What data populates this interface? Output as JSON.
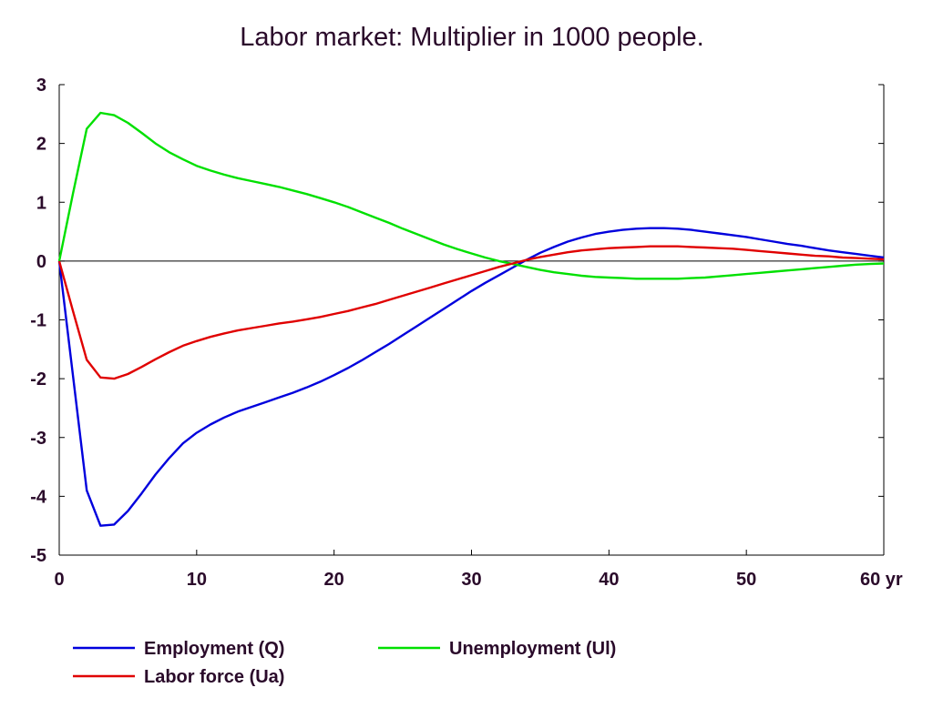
{
  "colors": {
    "text": "#2a0a2a",
    "axis": "#000000",
    "employment": "#0000dd",
    "labor_force": "#e00000",
    "unemployment": "#00e000"
  },
  "chart_data": {
    "type": "line",
    "title": "Labor market: Multiplier in 1000 people.",
    "xlabel": "",
    "ylabel": "",
    "xlim": [
      0,
      60
    ],
    "ylim": [
      -5,
      3
    ],
    "x_ticks": [
      0,
      10,
      20,
      30,
      40,
      50,
      60
    ],
    "x_tick_labels": [
      "0",
      "10",
      "20",
      "30",
      "40",
      "50",
      "60 yr"
    ],
    "y_ticks": [
      3,
      2,
      1,
      0,
      -1,
      -2,
      -3,
      -4,
      -5
    ],
    "y_tick_labels": [
      "3",
      "2",
      "1",
      "0",
      "-1",
      "-2",
      "-3",
      "-4",
      "-5"
    ],
    "grid": false,
    "legend_position": "bottom",
    "x": [
      0,
      1,
      2,
      3,
      4,
      5,
      6,
      7,
      8,
      9,
      10,
      11,
      12,
      13,
      14,
      15,
      16,
      17,
      18,
      19,
      20,
      21,
      22,
      23,
      24,
      25,
      26,
      27,
      28,
      29,
      30,
      31,
      32,
      33,
      34,
      35,
      36,
      37,
      38,
      39,
      40,
      41,
      42,
      43,
      44,
      45,
      46,
      47,
      48,
      49,
      50,
      51,
      52,
      53,
      54,
      55,
      56,
      57,
      58,
      59,
      60
    ],
    "series": [
      {
        "name": "Employment (Q)",
        "color": "#0000dd",
        "values": [
          0,
          -1.95,
          -3.9,
          -4.5,
          -4.48,
          -4.25,
          -3.95,
          -3.63,
          -3.35,
          -3.1,
          -2.92,
          -2.78,
          -2.66,
          -2.56,
          -2.48,
          -2.4,
          -2.32,
          -2.24,
          -2.15,
          -2.05,
          -1.94,
          -1.82,
          -1.69,
          -1.55,
          -1.41,
          -1.26,
          -1.11,
          -0.96,
          -0.81,
          -0.66,
          -0.51,
          -0.37,
          -0.24,
          -0.11,
          0.02,
          0.14,
          0.24,
          0.33,
          0.4,
          0.46,
          0.5,
          0.53,
          0.55,
          0.56,
          0.56,
          0.55,
          0.53,
          0.5,
          0.47,
          0.44,
          0.41,
          0.37,
          0.33,
          0.29,
          0.26,
          0.22,
          0.18,
          0.15,
          0.12,
          0.09,
          0.06
        ]
      },
      {
        "name": "Unemployment (Ul)",
        "color": "#00e000",
        "values": [
          0,
          1.15,
          2.25,
          2.52,
          2.48,
          2.35,
          2.18,
          2.0,
          1.85,
          1.73,
          1.62,
          1.54,
          1.47,
          1.41,
          1.36,
          1.31,
          1.26,
          1.2,
          1.14,
          1.07,
          1.0,
          0.92,
          0.83,
          0.74,
          0.65,
          0.55,
          0.46,
          0.37,
          0.28,
          0.2,
          0.13,
          0.06,
          0.0,
          -0.05,
          -0.1,
          -0.15,
          -0.19,
          -0.22,
          -0.25,
          -0.27,
          -0.28,
          -0.29,
          -0.3,
          -0.3,
          -0.3,
          -0.3,
          -0.29,
          -0.28,
          -0.26,
          -0.24,
          -0.22,
          -0.2,
          -0.18,
          -0.16,
          -0.14,
          -0.12,
          -0.1,
          -0.08,
          -0.06,
          -0.05,
          -0.04
        ]
      },
      {
        "name": "Labor force (Ua)",
        "color": "#e00000",
        "values": [
          0,
          -0.85,
          -1.68,
          -1.98,
          -2.0,
          -1.92,
          -1.8,
          -1.67,
          -1.55,
          -1.44,
          -1.36,
          -1.29,
          -1.23,
          -1.18,
          -1.14,
          -1.1,
          -1.06,
          -1.03,
          -0.99,
          -0.95,
          -0.9,
          -0.85,
          -0.79,
          -0.73,
          -0.66,
          -0.59,
          -0.52,
          -0.45,
          -0.38,
          -0.31,
          -0.24,
          -0.17,
          -0.1,
          -0.04,
          0.02,
          0.07,
          0.11,
          0.15,
          0.18,
          0.2,
          0.22,
          0.23,
          0.24,
          0.25,
          0.25,
          0.25,
          0.24,
          0.23,
          0.22,
          0.21,
          0.19,
          0.17,
          0.15,
          0.13,
          0.11,
          0.09,
          0.08,
          0.06,
          0.05,
          0.04,
          0.03
        ]
      }
    ],
    "legend": [
      {
        "label": "Employment (Q)",
        "color": "#0000dd"
      },
      {
        "label": "Unemployment (Ul)",
        "color": "#00e000"
      },
      {
        "label": "Labor force (Ua)",
        "color": "#e00000"
      }
    ]
  }
}
